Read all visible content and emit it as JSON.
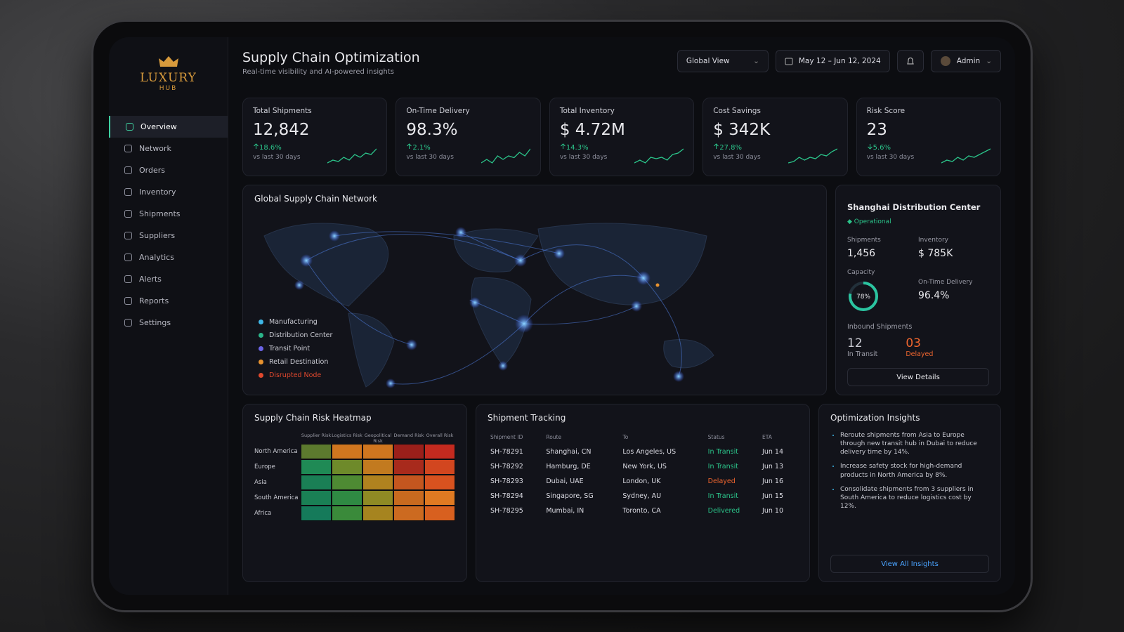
{
  "brand": {
    "name": "LUXURY",
    "sub": "HUB"
  },
  "nav": [
    "Overview",
    "Network",
    "Orders",
    "Inventory",
    "Shipments",
    "Suppliers",
    "Analytics",
    "Alerts",
    "Reports",
    "Settings"
  ],
  "header": {
    "title": "Supply Chain Optimization",
    "subtitle": "Real-time visibility and AI-powered insights",
    "view": "Global View",
    "date_range": "May 12 – Jun 12, 2024",
    "user": "Admin"
  },
  "kpis": [
    {
      "label": "Total Shipments",
      "value": "12,842",
      "change": "18.6%",
      "trend": "up",
      "note": "vs last 30 days",
      "spark": [
        3,
        4,
        3.5,
        5,
        4,
        6,
        5,
        6.5,
        6,
        8
      ]
    },
    {
      "label": "On-Time Delivery",
      "value": "98.3%",
      "change": "2.1%",
      "trend": "up",
      "note": "vs last 30 days",
      "spark": [
        4,
        5,
        4,
        6,
        5,
        6,
        5.5,
        7,
        6,
        8
      ]
    },
    {
      "label": "Total Inventory",
      "value": "$ 4.72M",
      "change": "14.3%",
      "trend": "up",
      "note": "vs last 30 days",
      "spark": [
        3,
        4,
        3,
        5,
        4.5,
        5,
        4,
        6,
        6.5,
        8
      ]
    },
    {
      "label": "Cost Savings",
      "value": "$ 342K",
      "change": "27.8%",
      "trend": "up",
      "note": "vs last 30 days",
      "spark": [
        3,
        3.5,
        5,
        4,
        5,
        4.5,
        6,
        5.5,
        7,
        8
      ]
    },
    {
      "label": "Risk Score",
      "value": "23",
      "change": "5.6%",
      "trend": "down",
      "note": "vs last 30 days",
      "spark": [
        3,
        4,
        3.5,
        5,
        4,
        5.5,
        5,
        6,
        7,
        8
      ]
    }
  ],
  "map": {
    "title": "Global Supply Chain Network",
    "legend": [
      {
        "name": "Manufacturing",
        "color": "#3fb7e8"
      },
      {
        "name": "Distribution Center",
        "color": "#2bb58a"
      },
      {
        "name": "Transit Point",
        "color": "#6b63e6"
      },
      {
        "name": "Retail Destination",
        "color": "#e8922f"
      },
      {
        "name": "Disrupted Node",
        "color": "#e0482d",
        "label_color": "#e0482d"
      }
    ]
  },
  "center": {
    "title": "Shanghai Distribution Center",
    "status": "Operational",
    "shipments": {
      "label": "Shipments",
      "value": "1,456"
    },
    "inventory": {
      "label": "Inventory",
      "value": "$ 785K"
    },
    "capacity": {
      "label": "Capacity",
      "value": 78,
      "value_label": "78%"
    },
    "on_time": {
      "label": "On-Time Delivery",
      "value": "96.4%"
    },
    "inbound": {
      "title": "Inbound Shipments",
      "in_transit": {
        "value": "12",
        "label": "In Transit"
      },
      "delayed": {
        "value": "03",
        "label": "Delayed"
      }
    },
    "button": "View Details"
  },
  "heatmap": {
    "title": "Supply Chain Risk Heatmap",
    "columns": [
      "Supplier Risk",
      "Logistics Risk",
      "Geopolitical Risk",
      "Demand Risk",
      "Overall Risk"
    ],
    "rows": [
      "North America",
      "Europe",
      "Asia",
      "South America",
      "Africa"
    ],
    "cells": [
      [
        "#5c7a2e",
        "#d0761f",
        "#d0761f",
        "#9a1f1a",
        "#c42a1f"
      ],
      [
        "#1f8a55",
        "#6e8a2a",
        "#c27a1f",
        "#a82a1c",
        "#d2461f"
      ],
      [
        "#1a7f55",
        "#4e8a33",
        "#b0821f",
        "#c4561f",
        "#d8521f"
      ],
      [
        "#1a8055",
        "#2f8a43",
        "#8f8a24",
        "#c86a1f",
        "#e07a22"
      ],
      [
        "#157a5a",
        "#3a8a3a",
        "#a6841f",
        "#cc6a20",
        "#d8601f"
      ]
    ]
  },
  "tracking": {
    "title": "Shipment Tracking",
    "columns": [
      "Shipment ID",
      "Route",
      "To",
      "Status",
      "ETA"
    ],
    "rows": [
      [
        "SH-78291",
        "Shanghai, CN",
        "Los Angeles, US",
        "In Transit",
        "Jun 14"
      ],
      [
        "SH-78292",
        "Hamburg, DE",
        "New York, US",
        "In Transit",
        "Jun 13"
      ],
      [
        "SH-78293",
        "Dubai, UAE",
        "London, UK",
        "Delayed",
        "Jun 16"
      ],
      [
        "SH-78294",
        "Singapore, SG",
        "Sydney, AU",
        "In Transit",
        "Jun 15"
      ],
      [
        "SH-78295",
        "Mumbai, IN",
        "Toronto, CA",
        "Delivered",
        "Jun 10"
      ]
    ],
    "status_colors": [
      "#2bc48a",
      "#2bc48a",
      "#f0662f",
      "#2bc48a",
      "#2bc48a"
    ]
  },
  "insights": {
    "title": "Optimization Insights",
    "items": [
      "Reroute shipments from Asia to Europe through new transit hub in Dubai to reduce delivery time by 14%.",
      "Increase safety stock for high-demand products in North America by 8%.",
      "Consolidate shipments from 3 suppliers in South America to reduce logistics cost by 12%."
    ],
    "link": "View All Insights"
  }
}
